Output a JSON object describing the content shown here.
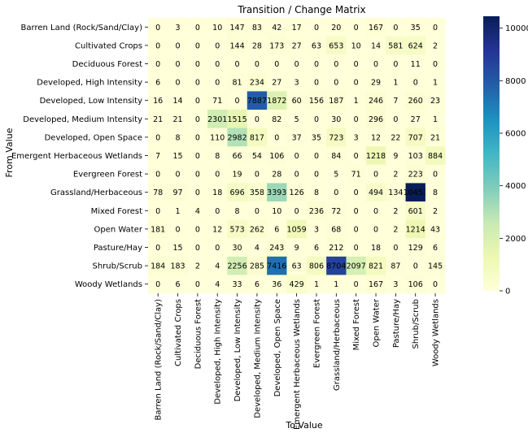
{
  "chart_data": {
    "type": "heatmap",
    "title": "Transition / Change Matrix",
    "xlabel": "To Value",
    "ylabel": "From Value",
    "categories": [
      "Barren Land (Rock/Sand/Clay)",
      "Cultivated Crops",
      "Deciduous Forest",
      "Developed, High Intensity",
      "Developed, Low Intensity",
      "Developed, Medium Intensity",
      "Developed, Open Space",
      "Emergent Herbaceous Wetlands",
      "Evergreen Forest",
      "Grassland/Herbaceous",
      "Mixed Forest",
      "Open Water",
      "Pasture/Hay",
      "Shrub/Scrub",
      "Woody Wetlands"
    ],
    "values": [
      [
        0,
        3,
        0,
        10,
        147,
        83,
        42,
        17,
        0,
        20,
        0,
        167,
        0,
        35,
        0
      ],
      [
        0,
        0,
        0,
        0,
        144,
        28,
        173,
        27,
        63,
        653,
        10,
        14,
        581,
        624,
        2
      ],
      [
        0,
        0,
        0,
        0,
        0,
        0,
        0,
        0,
        0,
        0,
        0,
        0,
        0,
        11,
        0
      ],
      [
        6,
        0,
        0,
        0,
        81,
        234,
        27,
        3,
        0,
        0,
        0,
        29,
        1,
        0,
        1
      ],
      [
        16,
        14,
        0,
        71,
        0,
        7887,
        1872,
        60,
        156,
        187,
        1,
        246,
        7,
        260,
        23
      ],
      [
        21,
        21,
        0,
        2301,
        1515,
        0,
        82,
        5,
        0,
        30,
        0,
        296,
        0,
        27,
        1
      ],
      [
        0,
        8,
        0,
        110,
        2982,
        817,
        0,
        37,
        35,
        723,
        3,
        12,
        22,
        707,
        21
      ],
      [
        7,
        15,
        0,
        8,
        66,
        54,
        106,
        0,
        0,
        84,
        0,
        1218,
        9,
        103,
        884
      ],
      [
        0,
        0,
        0,
        0,
        19,
        0,
        28,
        0,
        0,
        5,
        71,
        0,
        2,
        223,
        0
      ],
      [
        78,
        97,
        0,
        18,
        696,
        358,
        3393,
        126,
        8,
        0,
        0,
        494,
        134,
        10453,
        8
      ],
      [
        0,
        1,
        4,
        0,
        8,
        0,
        10,
        0,
        236,
        72,
        0,
        0,
        2,
        601,
        2
      ],
      [
        181,
        0,
        0,
        12,
        573,
        262,
        6,
        1059,
        3,
        68,
        0,
        0,
        2,
        1214,
        43
      ],
      [
        0,
        15,
        0,
        0,
        30,
        4,
        243,
        9,
        6,
        212,
        0,
        18,
        0,
        129,
        6
      ],
      [
        184,
        183,
        2,
        4,
        2256,
        285,
        7416,
        63,
        806,
        8704,
        2097,
        821,
        87,
        0,
        145
      ],
      [
        0,
        6,
        0,
        4,
        33,
        6,
        36,
        429,
        1,
        1,
        0,
        167,
        3,
        106,
        0
      ]
    ],
    "colorbar": {
      "min": 0,
      "max": 10453,
      "ticks": [
        0,
        2000,
        4000,
        6000,
        8000,
        10000
      ]
    },
    "colormap": "YlGnBu",
    "grid": false,
    "legend": "colorbar-right"
  },
  "colors": {
    "stops": [
      "#ffffd9",
      "#edf8b1",
      "#c7e9b4",
      "#7fcdbb",
      "#41b6c4",
      "#1d91c0",
      "#225ea8",
      "#253494",
      "#081d58"
    ]
  }
}
